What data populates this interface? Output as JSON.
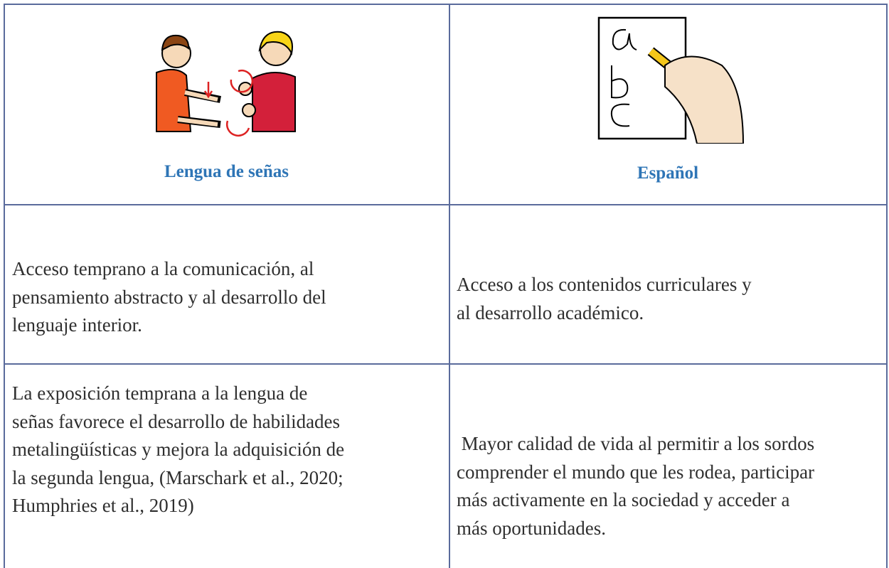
{
  "table": {
    "header": [
      "Lengua de señas",
      "Español"
    ],
    "rows": [
      [
        [
          "Acceso temprano a la comunicación, al",
          "pensamiento abstracto y al desarrollo del",
          "lenguaje interior."
        ],
        [
          "Acceso a los contenidos curriculares y",
          "al desarrollo académico."
        ]
      ],
      [
        [
          "La exposición temprana a la lengua de",
          "señas favorece el desarrollo de habilidades",
          "metalingüísticas y mejora la adquisición de",
          "la segunda lengua, (Marschark et al., 2020;",
          "Humphries et al., 2019)"
        ],
        [
          " Mayor calidad de vida al permitir a los sordos",
          "comprender el mundo que les rodea, participar",
          "más activamente en la sociedad y acceder a",
          "más oportunidades."
        ]
      ]
    ]
  }
}
